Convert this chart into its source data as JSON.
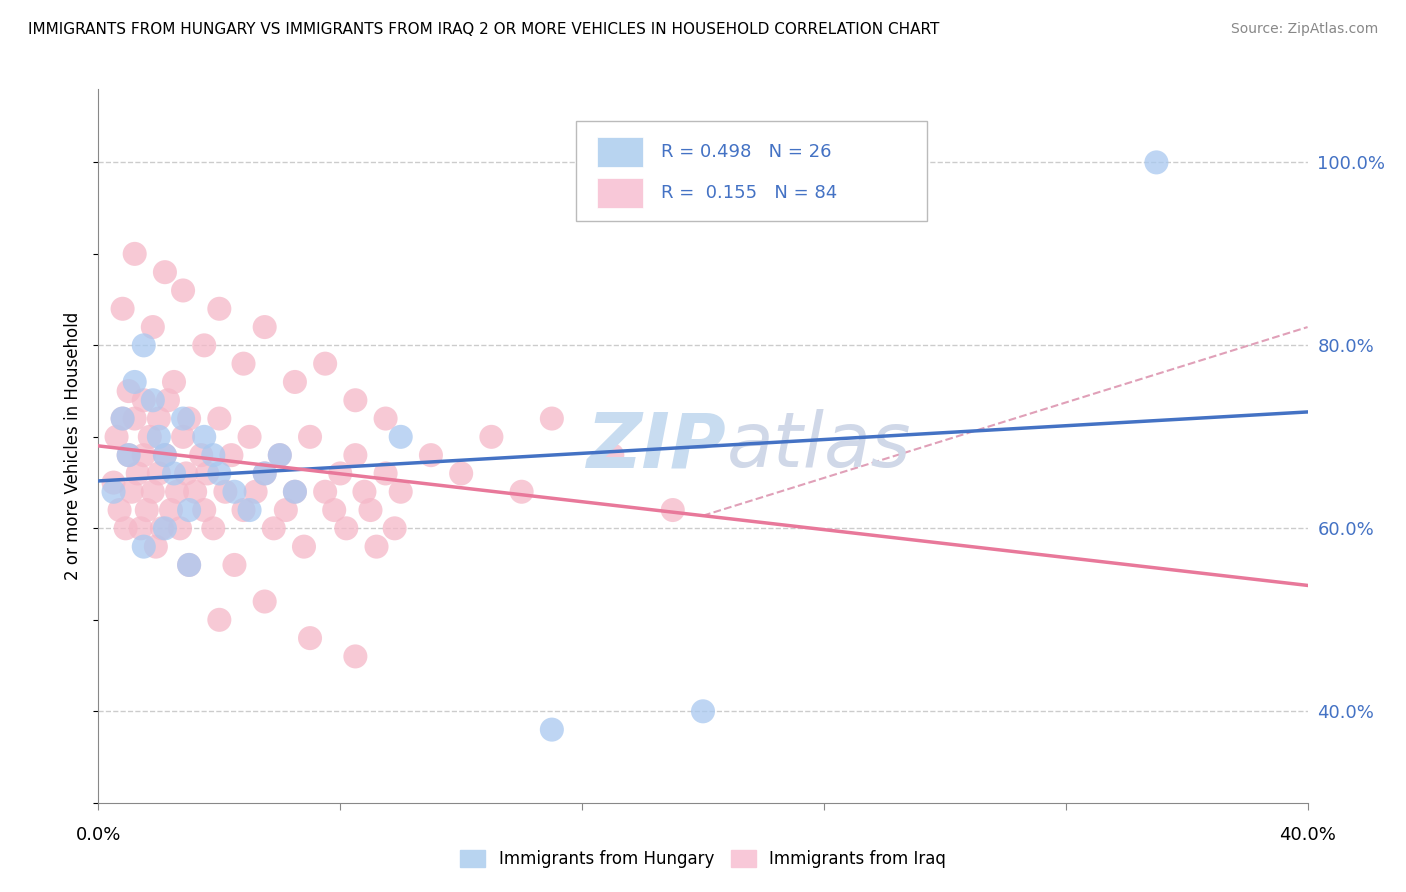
{
  "title": "IMMIGRANTS FROM HUNGARY VS IMMIGRANTS FROM IRAQ 2 OR MORE VEHICLES IN HOUSEHOLD CORRELATION CHART",
  "source": "Source: ZipAtlas.com",
  "ylabel": "2 or more Vehicles in Household",
  "hungary_color": "#a8c8f0",
  "iraq_color": "#f5b8c8",
  "trend_hungary_color": "#4472c4",
  "trend_iraq_color": "#e8789a",
  "dashed_color": "#e0a0b8",
  "watermark_color": "#dce8f4",
  "background_color": "#ffffff",
  "legend_hungary_color": "#b8d4f0",
  "legend_iraq_color": "#f8c8d8",
  "xlim": [
    0.0,
    0.4
  ],
  "ylim": [
    0.3,
    1.08
  ],
  "ytick_vals": [
    0.4,
    0.6,
    0.8,
    1.0
  ],
  "ytick_labels": [
    "40.0%",
    "60.0%",
    "80.0%",
    "100.0%"
  ],
  "xtick_labels_show": [
    "0.0%",
    "40.0%"
  ],
  "legend_R1": "0.498",
  "legend_N1": "26",
  "legend_R2": "0.155",
  "legend_N2": "84",
  "hungary_x": [
    0.005,
    0.008,
    0.01,
    0.012,
    0.015,
    0.018,
    0.02,
    0.022,
    0.025,
    0.028,
    0.03,
    0.035,
    0.038,
    0.04,
    0.045,
    0.05,
    0.055,
    0.06,
    0.065,
    0.015,
    0.022,
    0.03,
    0.1,
    0.15,
    0.2,
    0.35
  ],
  "hungary_y": [
    0.64,
    0.72,
    0.68,
    0.76,
    0.8,
    0.74,
    0.7,
    0.68,
    0.66,
    0.72,
    0.62,
    0.7,
    0.68,
    0.66,
    0.64,
    0.62,
    0.66,
    0.68,
    0.64,
    0.58,
    0.6,
    0.56,
    0.7,
    0.38,
    0.4,
    1.0
  ],
  "iraq_x": [
    0.005,
    0.006,
    0.007,
    0.008,
    0.009,
    0.01,
    0.01,
    0.011,
    0.012,
    0.013,
    0.014,
    0.015,
    0.015,
    0.016,
    0.017,
    0.018,
    0.019,
    0.02,
    0.02,
    0.021,
    0.022,
    0.023,
    0.024,
    0.025,
    0.026,
    0.027,
    0.028,
    0.029,
    0.03,
    0.03,
    0.032,
    0.034,
    0.035,
    0.036,
    0.038,
    0.04,
    0.042,
    0.044,
    0.045,
    0.048,
    0.05,
    0.052,
    0.055,
    0.058,
    0.06,
    0.062,
    0.065,
    0.068,
    0.07,
    0.075,
    0.078,
    0.08,
    0.082,
    0.085,
    0.088,
    0.09,
    0.092,
    0.095,
    0.098,
    0.1,
    0.008,
    0.012,
    0.018,
    0.022,
    0.028,
    0.035,
    0.04,
    0.048,
    0.055,
    0.065,
    0.075,
    0.085,
    0.095,
    0.11,
    0.12,
    0.13,
    0.14,
    0.15,
    0.17,
    0.19,
    0.04,
    0.055,
    0.07,
    0.085
  ],
  "iraq_y": [
    0.65,
    0.7,
    0.62,
    0.72,
    0.6,
    0.68,
    0.75,
    0.64,
    0.72,
    0.66,
    0.6,
    0.74,
    0.68,
    0.62,
    0.7,
    0.64,
    0.58,
    0.72,
    0.66,
    0.6,
    0.68,
    0.74,
    0.62,
    0.76,
    0.64,
    0.6,
    0.7,
    0.66,
    0.72,
    0.56,
    0.64,
    0.68,
    0.62,
    0.66,
    0.6,
    0.72,
    0.64,
    0.68,
    0.56,
    0.62,
    0.7,
    0.64,
    0.66,
    0.6,
    0.68,
    0.62,
    0.64,
    0.58,
    0.7,
    0.64,
    0.62,
    0.66,
    0.6,
    0.68,
    0.64,
    0.62,
    0.58,
    0.66,
    0.6,
    0.64,
    0.84,
    0.9,
    0.82,
    0.88,
    0.86,
    0.8,
    0.84,
    0.78,
    0.82,
    0.76,
    0.78,
    0.74,
    0.72,
    0.68,
    0.66,
    0.7,
    0.64,
    0.72,
    0.68,
    0.62,
    0.5,
    0.52,
    0.48,
    0.46
  ]
}
